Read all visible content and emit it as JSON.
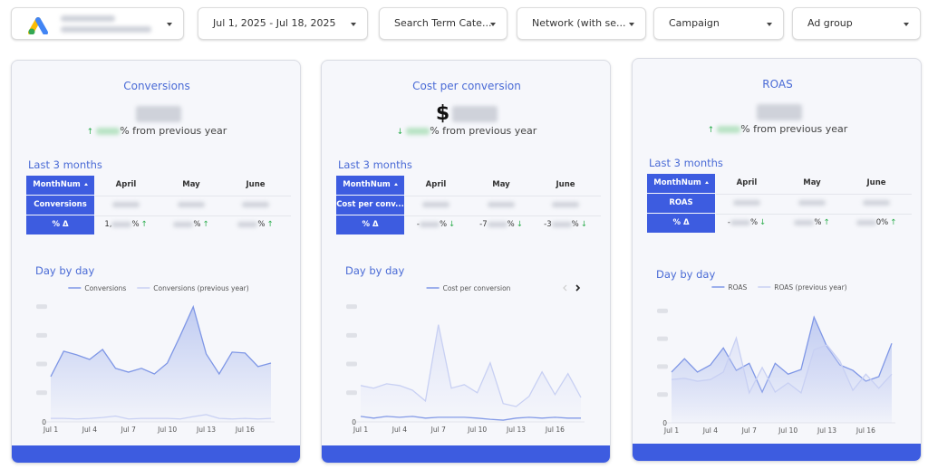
{
  "header": {
    "filters": [
      {
        "label": "Jul 1, 2025 - Jul 18, 2025"
      },
      {
        "label": "Search Term Cate..."
      },
      {
        "label": "Network (with se..."
      },
      {
        "label": "Campaign"
      },
      {
        "label": "Ad group"
      }
    ]
  },
  "cards": [
    {
      "title": "Conversions",
      "change": {
        "arrow": "↑",
        "direction": "up",
        "text": "% from previous year"
      },
      "table_title": "Last 3 months",
      "table": {
        "columns": [
          "MonthNum",
          "April",
          "May",
          "June"
        ],
        "rows": [
          {
            "label": "Conversions"
          },
          {
            "label": "% Δ",
            "cells": [
              {
                "pre": "1,",
                "post": "%",
                "arrow": "↑",
                "direction": "up"
              },
              {
                "post": "%",
                "arrow": "↑",
                "direction": "up"
              },
              {
                "post": "%",
                "arrow": "↑",
                "direction": "up"
              }
            ]
          }
        ]
      }
    },
    {
      "title": "Cost per conversion",
      "value_prefix": "$",
      "change": {
        "arrow": "↓",
        "direction": "down",
        "text": "% from previous year"
      },
      "table_title": "Last 3 months",
      "table": {
        "columns": [
          "MonthNum",
          "April",
          "May",
          "June"
        ],
        "rows": [
          {
            "label": "Cost per conv..."
          },
          {
            "label": "% Δ",
            "cells": [
              {
                "pre": "-",
                "post": "%",
                "arrow": "↓",
                "direction": "down"
              },
              {
                "pre": "-7",
                "post": "%",
                "arrow": "↓",
                "direction": "down"
              },
              {
                "pre": "-3",
                "post": "%",
                "arrow": "↓",
                "direction": "down"
              }
            ]
          }
        ]
      }
    },
    {
      "title": "ROAS",
      "change": {
        "arrow": "↑",
        "direction": "up",
        "text": "% from previous year"
      },
      "table_title": "Last 3 months",
      "table": {
        "columns": [
          "MonthNum",
          "April",
          "May",
          "June"
        ],
        "rows": [
          {
            "label": "ROAS"
          },
          {
            "label": "% Δ",
            "cells": [
              {
                "pre": "-",
                "post": "%",
                "arrow": "↓",
                "direction": "down"
              },
              {
                "post": "%",
                "arrow": "↑",
                "direction": "up"
              },
              {
                "post": "0%",
                "arrow": "↑",
                "direction": "up"
              }
            ]
          }
        ]
      }
    }
  ],
  "chart_data": [
    {
      "type": "line",
      "title": "Day by day",
      "categories": [
        "Jul 1",
        null,
        null,
        "Jul 4",
        null,
        null,
        "Jul 7",
        null,
        null,
        "Jul 10",
        null,
        null,
        "Jul 13",
        null,
        null,
        "Jul 16",
        null,
        null
      ],
      "series": [
        {
          "name": "Conversions",
          "color": "#7f97e6",
          "fill": true,
          "values": [
            154,
            240,
            228,
            212,
            246,
            182,
            169,
            182,
            163,
            200,
            293,
            391,
            231,
            163,
            237,
            234,
            188,
            200
          ]
        },
        {
          "name": "Conversions (previous year)",
          "color": "#c8d0f3",
          "values": [
            12,
            12,
            10,
            12,
            15,
            20,
            10,
            12,
            12,
            12,
            10,
            18,
            25,
            12,
            10,
            12,
            10,
            12
          ]
        }
      ],
      "ylim": [
        0,
        415
      ],
      "yticks": [
        0
      ]
    },
    {
      "type": "line",
      "title": "Day by day",
      "categories": [
        "Jul 1",
        null,
        null,
        "Jul 4",
        null,
        null,
        "Jul 7",
        null,
        null,
        "Jul 10",
        null,
        null,
        "Jul 13",
        null,
        null,
        "Jul 16",
        null,
        null
      ],
      "series": [
        {
          "name": "Cost per conversion",
          "color": "#7f97e6",
          "values": [
            1.9,
            1.3,
            1.9,
            1.6,
            1.9,
            1.3,
            1.6,
            1.6,
            1.6,
            1.3,
            0.9,
            0.6,
            1.3,
            1.6,
            1.3,
            1.6,
            1.3,
            1.3
          ]
        },
        {
          "color": "#c8d0f3",
          "fill": true,
          "values": [
            12.5,
            11.6,
            13.1,
            12.5,
            10.9,
            7.2,
            33.4,
            11.6,
            12.8,
            10,
            20.3,
            6.3,
            5.3,
            8.8,
            17.2,
            9.4,
            16.6,
            8.4
          ]
        }
      ],
      "ylim": [
        0,
        42
      ],
      "yticks": [
        0
      ]
    },
    {
      "type": "line",
      "title": "Day by day",
      "categories": [
        "Jul 1",
        null,
        null,
        "Jul 4",
        null,
        null,
        "Jul 7",
        null,
        null,
        "Jul 10",
        null,
        null,
        "Jul 13",
        null,
        null,
        "Jul 16",
        null,
        null
      ],
      "series": [
        {
          "name": "ROAS",
          "color": "#7f97e6",
          "fill": true,
          "values": [
            12.2,
            15.4,
            12.2,
            13.9,
            18,
            12.6,
            14.3,
            7.4,
            14.3,
            11.7,
            12.8,
            25.4,
            18.3,
            13.9,
            12.6,
            10,
            11.1,
            19.1
          ]
        },
        {
          "name": "ROAS (previous year)",
          "color": "#c8d0f3",
          "fill": true,
          "values": [
            10.4,
            10.7,
            10,
            10.4,
            12.2,
            20.4,
            7.2,
            13.3,
            7.4,
            9.6,
            7.2,
            17.6,
            18.7,
            14.8,
            7.8,
            11.7,
            8.3,
            11.7
          ]
        }
      ],
      "ylim": [
        0,
        28.5
      ],
      "yticks": [
        0
      ]
    }
  ]
}
